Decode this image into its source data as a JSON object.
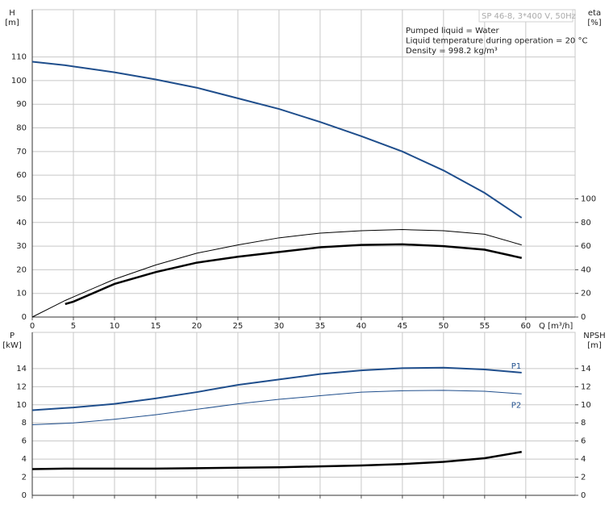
{
  "chart_data": [
    {
      "type": "line",
      "title": "SP 46-8, 3*400 V, 50Hz",
      "annotations": [
        "Pumped liquid = Water",
        "Liquid temperature during operation = 20 °C",
        "Density = 998.2 kg/m³"
      ],
      "ylabel": [
        "H",
        "[m]"
      ],
      "y2label": [
        "eta",
        "[%]"
      ],
      "xlabel": "Q [m³/h]",
      "x": [
        0,
        4,
        5,
        10,
        15,
        20,
        25,
        30,
        35,
        40,
        45,
        50,
        55,
        59.5
      ],
      "xlim": [
        0,
        66
      ],
      "xticks": [
        0,
        5,
        10,
        15,
        20,
        25,
        30,
        35,
        40,
        45,
        50,
        55,
        60
      ],
      "show_xtick_labels": true,
      "ylim": [
        0,
        130
      ],
      "yticks": [
        0,
        10,
        20,
        30,
        40,
        50,
        60,
        70,
        80,
        90,
        100,
        110
      ],
      "y2lim": [
        0,
        260
      ],
      "y2ticks": [
        0,
        20,
        40,
        60,
        80,
        100
      ],
      "grid": true,
      "series": [
        {
          "color": "#1f4e8c",
          "line_width": 2,
          "values": [
            108,
            106.5,
            106,
            103.5,
            100.5,
            97,
            92.5,
            88,
            82.5,
            76.5,
            70,
            62,
            52.5,
            42
          ]
        },
        {
          "color": "#000000",
          "line_width": 1,
          "axis": "y2",
          "values": [
            0,
            14,
            17,
            32,
            44,
            54,
            61,
            67,
            71,
            73,
            74,
            73,
            70,
            61
          ]
        },
        {
          "color": "#000000",
          "line_width": 2.5,
          "axis": "y2",
          "values": [
            null,
            11,
            13,
            28,
            38,
            46,
            51,
            55,
            59,
            61,
            61.5,
            60,
            57,
            50
          ]
        }
      ]
    },
    {
      "type": "line",
      "ylabel": [
        "P",
        "[kW]"
      ],
      "y2label": [
        "NPSH",
        "[m]"
      ],
      "x": [
        0,
        4,
        5,
        10,
        15,
        20,
        25,
        30,
        35,
        40,
        45,
        50,
        55,
        59.5
      ],
      "xlim": [
        0,
        66
      ],
      "xticks": [
        0,
        5,
        10,
        15,
        20,
        25,
        30,
        35,
        40,
        45,
        50,
        55,
        60
      ],
      "show_xtick_labels": false,
      "ylim": [
        0,
        18
      ],
      "yticks": [
        0,
        2,
        4,
        6,
        8,
        10,
        12,
        14
      ],
      "y2lim": [
        0,
        18
      ],
      "y2ticks": [
        0,
        2,
        4,
        6,
        8,
        10,
        12,
        14
      ],
      "grid": true,
      "series": [
        {
          "name": "P1",
          "color": "#1f4e8c",
          "line_width": 2,
          "values": [
            9.4,
            9.65,
            9.7,
            10.1,
            10.7,
            11.4,
            12.2,
            12.8,
            13.4,
            13.8,
            14.05,
            14.1,
            13.9,
            13.55
          ]
        },
        {
          "name": "P2",
          "color": "#1f4e8c",
          "line_width": 1,
          "values": [
            7.8,
            7.95,
            8.0,
            8.4,
            8.9,
            9.5,
            10.1,
            10.6,
            11.0,
            11.4,
            11.55,
            11.6,
            11.5,
            11.2
          ]
        },
        {
          "color": "#000000",
          "line_width": 2.5,
          "axis": "y2",
          "values": [
            2.9,
            2.95,
            2.95,
            2.95,
            2.95,
            3.0,
            3.05,
            3.1,
            3.2,
            3.3,
            3.45,
            3.7,
            4.1,
            4.8
          ]
        }
      ]
    }
  ]
}
